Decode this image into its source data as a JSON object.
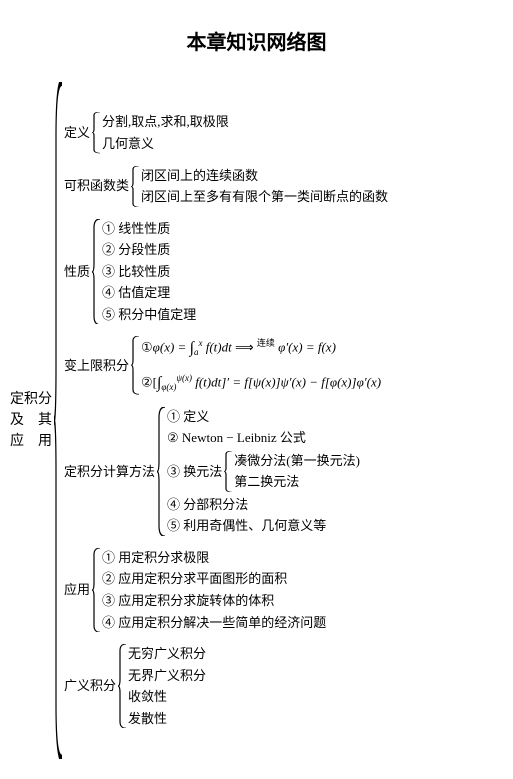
{
  "title": "本章知识网络图",
  "root": "定积分\n及　其\n应　用",
  "def": {
    "label": "定义",
    "items": [
      "分割,取点,求和,取极限",
      "几何意义"
    ]
  },
  "integrable": {
    "label": "可积函数类",
    "items": [
      "闭区间上的连续函数",
      "闭区间上至多有有限个第一类间断点的函数"
    ]
  },
  "properties": {
    "label": "性质",
    "items": [
      "① 线性性质",
      "② 分段性质",
      "③ 比较性质",
      "④ 估值定理",
      "⑤ 积分中值定理"
    ]
  },
  "upperlimit": {
    "label": "变上限积分",
    "line1_a": "①",
    "line1_b": "φ(x) = ",
    "line1_c": "f(t)dt",
    "line1_d": "连续",
    "line1_e": " φ′(x) = f(x)",
    "line2_a": "②[",
    "line2_b": "f(t)dt]′ = f[ψ(x)]ψ′(x) − f[φ(x)]φ′(x)",
    "int_low1": "a",
    "int_up1": "x",
    "int_low2": "φ(x)",
    "int_up2": "ψ(x)"
  },
  "methods": {
    "label": "定积分计算方法",
    "items_pre": [
      "① 定义",
      "② Newton − Leibniz 公式"
    ],
    "subst": {
      "label": "③ 换元法",
      "items": [
        "凑微分法(第一换元法)",
        "第二换元法"
      ]
    },
    "items_post": [
      "④ 分部积分法",
      "⑤ 利用奇偶性、几何意义等"
    ]
  },
  "apps": {
    "label": "应用",
    "items": [
      "① 用定积分求极限",
      "② 应用定积分求平面图形的面积",
      "③ 应用定积分求旋转体的体积",
      "④ 应用定积分解决一些简单的经济问题"
    ]
  },
  "improper": {
    "label": "广义积分",
    "items": [
      "无穷广义积分",
      "无界广义积分",
      "收敛性",
      "发散性"
    ]
  }
}
